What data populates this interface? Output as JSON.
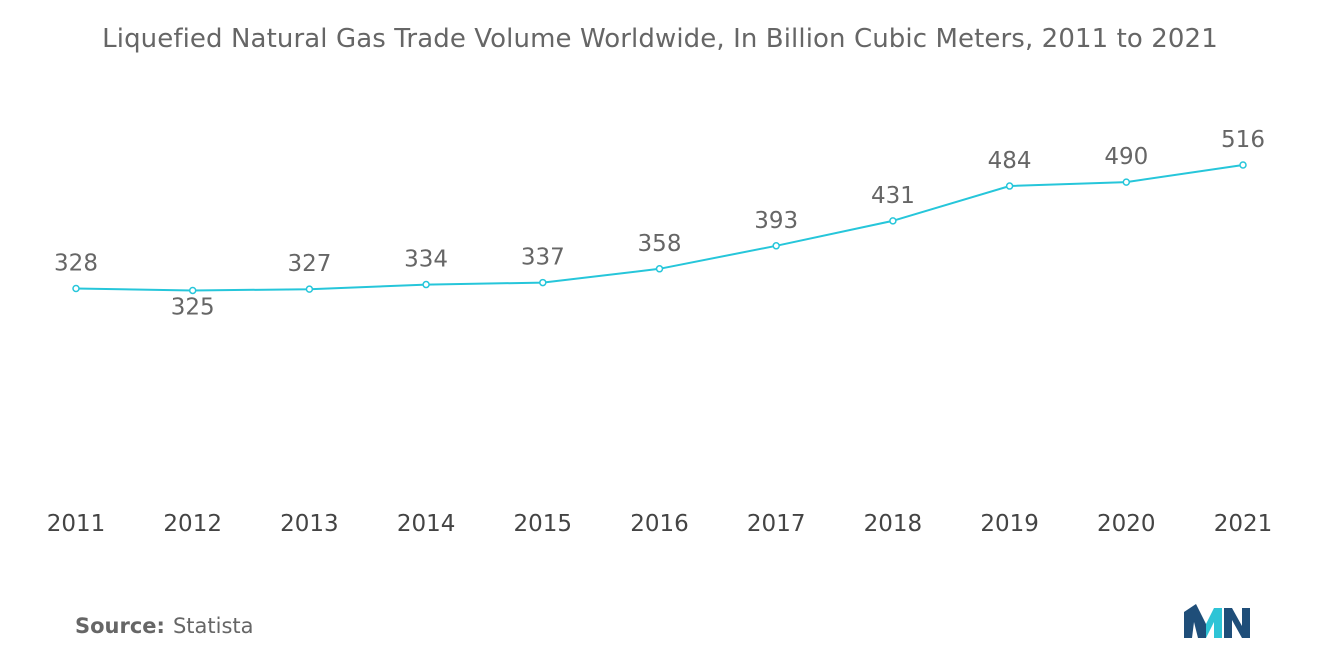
{
  "chart_data": {
    "type": "line",
    "title": "Liquefied Natural Gas Trade Volume Worldwide, In Billion Cubic Meters, 2011 to 2021",
    "categories": [
      "2011",
      "2012",
      "2013",
      "2014",
      "2015",
      "2016",
      "2017",
      "2018",
      "2019",
      "2020",
      "2021"
    ],
    "series": [
      {
        "values": [
          328,
          325,
          327,
          334,
          337,
          358,
          393,
          431,
          484,
          490,
          516
        ],
        "labels": [
          "328",
          "325",
          "327",
          "334",
          "337",
          "358",
          "393",
          "431",
          "484",
          "490",
          "516"
        ],
        "color": "#26c6da"
      }
    ],
    "xlabel": "",
    "ylabel": "",
    "grid": false,
    "legend": "none"
  },
  "source": {
    "label": "Source:",
    "value": "Statista"
  },
  "colors": {
    "line": "#26c6da",
    "logo_dark": "#1f4e79",
    "logo_light": "#2ec4d6"
  }
}
